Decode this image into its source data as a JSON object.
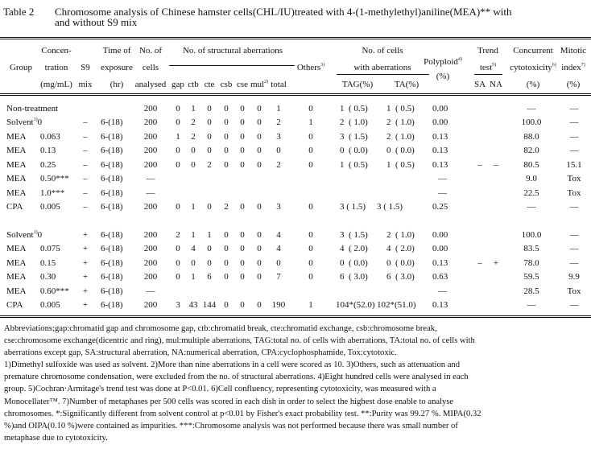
{
  "title": {
    "label": "Table 2",
    "text": "Chromosome analysis of Chinese hamster cells(CHL/IU)treated with 4-(1-methylethyl)aniline(MEA)** with",
    "text2": "and without S9 mix"
  },
  "header": {
    "group": "Group",
    "conc": [
      "Concen-",
      "tration",
      "(mg/mL)"
    ],
    "s9": [
      "S9",
      "mix"
    ],
    "time": [
      "Time of",
      "exposure",
      "(hr)"
    ],
    "cells": [
      "No. of",
      "cells",
      "analysed"
    ],
    "structural": "No. of structural aberrations",
    "sub": [
      "gap",
      "ctb",
      "cte",
      "csb",
      "cse",
      "mul",
      "total"
    ],
    "mul_sup": "2)",
    "others": "Others",
    "others_sup": "3)",
    "withab": [
      "No. of cells",
      "with aberrations"
    ],
    "tag": "TAG(%)",
    "ta": "TA(%)",
    "poly": "Polyploid",
    "poly_sup": "4)",
    "poly_unit": "(%)",
    "trend": "Trend",
    "trend2": "test",
    "trend_sup": "5)",
    "sa": "SA",
    "na": "NA",
    "cyto": [
      "Concurrent",
      "cytotoxicity",
      "(%)"
    ],
    "cyto_sup": "6)",
    "mitotic": [
      "Mitotic",
      "index",
      "(%)"
    ],
    "mitotic_sup": "7)"
  },
  "rows": [
    {
      "group": "Non-treatment",
      "conc": "",
      "s9": "",
      "time": "",
      "cells": "200",
      "ab": [
        "0",
        "1",
        "0",
        "0",
        "0",
        "0",
        "1"
      ],
      "others": "0",
      "tag": "1  ( 0.5)",
      "ta": "1  ( 0.5)",
      "poly": "0.00",
      "sa": "",
      "na": "",
      "cyto": "—",
      "mit": "—"
    },
    {
      "group": "Solvent",
      "sup": "1)",
      "conc": "0",
      "s9": "–",
      "time": "6-(18)",
      "cells": "200",
      "ab": [
        "0",
        "2",
        "0",
        "0",
        "0",
        "0",
        "2"
      ],
      "others": "1",
      "tag": "2  ( 1.0)",
      "ta": "2  ( 1.0)",
      "poly": "0.00",
      "sa": "",
      "na": "",
      "cyto": "100.0",
      "mit": "—"
    },
    {
      "group": "MEA",
      "conc": "0.063",
      "s9": "–",
      "time": "6-(18)",
      "cells": "200",
      "ab": [
        "1",
        "2",
        "0",
        "0",
        "0",
        "0",
        "3"
      ],
      "others": "0",
      "tag": "3  ( 1.5)",
      "ta": "2  ( 1.0)",
      "poly": "0.13",
      "sa": "",
      "na": "",
      "cyto": "88.0",
      "mit": "—"
    },
    {
      "group": "MEA",
      "conc": "0.13",
      "s9": "–",
      "time": "6-(18)",
      "cells": "200",
      "ab": [
        "0",
        "0",
        "0",
        "0",
        "0",
        "0",
        "0"
      ],
      "others": "0",
      "tag": "0  ( 0.0)",
      "ta": "0  ( 0.0)",
      "poly": "0.13",
      "sa": "",
      "na": "",
      "cyto": "82.0",
      "mit": "—"
    },
    {
      "group": "MEA",
      "conc": "0.25",
      "s9": "–",
      "time": "6-(18)",
      "cells": "200",
      "ab": [
        "0",
        "0",
        "2",
        "0",
        "0",
        "0",
        "2"
      ],
      "others": "0",
      "tag": "1  ( 0.5)",
      "ta": "1  ( 0.5)",
      "poly": "0.13",
      "sa": "–",
      "na": "–",
      "cyto": "80.5",
      "mit": "15.1"
    },
    {
      "group": "MEA",
      "conc": "0.50***",
      "s9": "–",
      "time": "6-(18)",
      "cells": "—",
      "ab": [
        "",
        "",
        "",
        "",
        "",
        "",
        ""
      ],
      "others": "",
      "tag": "",
      "ta": "",
      "poly": "—",
      "sa": "",
      "na": "",
      "cyto": "9.0",
      "mit": "Tox"
    },
    {
      "group": "MEA",
      "conc": "1.0***",
      "s9": "–",
      "time": "6-(18)",
      "cells": "—",
      "ab": [
        "",
        "",
        "",
        "",
        "",
        "",
        ""
      ],
      "others": "",
      "tag": "",
      "ta": "",
      "poly": "—",
      "sa": "",
      "na": "",
      "cyto": "22.5",
      "mit": "Tox"
    },
    {
      "group": "CPA",
      "conc": "0.005",
      "s9": "–",
      "time": "6-(18)",
      "cells": "200",
      "ab": [
        "0",
        "1",
        "0",
        "2",
        "0",
        "0",
        "3"
      ],
      "others": "0",
      "tag": "3 ( 1.5)",
      "ta": "3 ( 1.5)",
      "poly": "0.25",
      "sa": "",
      "na": "",
      "cyto": "—",
      "mit": "—"
    },
    {
      "group": "Solvent",
      "sup": "1)",
      "conc": "0",
      "s9": "+",
      "time": "6-(18)",
      "cells": "200",
      "ab": [
        "2",
        "1",
        "1",
        "0",
        "0",
        "0",
        "4"
      ],
      "others": "0",
      "tag": "3  ( 1.5)",
      "ta": "2  ( 1.0)",
      "poly": "0.00",
      "sa": "",
      "na": "",
      "cyto": "100.0",
      "mit": "—"
    },
    {
      "group": "MEA",
      "conc": "0.075",
      "s9": "+",
      "time": "6-(18)",
      "cells": "200",
      "ab": [
        "0",
        "4",
        "0",
        "0",
        "0",
        "0",
        "4"
      ],
      "others": "0",
      "tag": "4  ( 2.0)",
      "ta": "4  ( 2.0)",
      "poly": "0.00",
      "sa": "",
      "na": "",
      "cyto": "83.5",
      "mit": "—"
    },
    {
      "group": "MEA",
      "conc": "0.15",
      "s9": "+",
      "time": "6-(18)",
      "cells": "200",
      "ab": [
        "0",
        "0",
        "0",
        "0",
        "0",
        "0",
        "0"
      ],
      "others": "0",
      "tag": "0  ( 0.0)",
      "ta": "0  ( 0.0)",
      "poly": "0.13",
      "sa": "–",
      "na": "+",
      "cyto": "78.0",
      "mit": "—"
    },
    {
      "group": "MEA",
      "conc": "0.30",
      "s9": "+",
      "time": "6-(18)",
      "cells": "200",
      "ab": [
        "0",
        "1",
        "6",
        "0",
        "0",
        "0",
        "7"
      ],
      "others": "0",
      "tag": "6  ( 3.0)",
      "ta": "6  ( 3.0)",
      "poly": "0.63",
      "sa": "",
      "na": "",
      "cyto": "59.5",
      "mit": "9.9"
    },
    {
      "group": "MEA",
      "conc": "0.60***",
      "s9": "+",
      "time": "6-(18)",
      "cells": "—",
      "ab": [
        "",
        "",
        "",
        "",
        "",
        "",
        ""
      ],
      "others": "",
      "tag": "",
      "ta": "",
      "poly": "—",
      "sa": "",
      "na": "",
      "cyto": "28.5",
      "mit": "Tox"
    },
    {
      "group": "CPA",
      "conc": "0.005",
      "s9": "+",
      "time": "6-(18)",
      "cells": "200",
      "ab": [
        "3",
        "43",
        "144",
        "0",
        "0",
        "0",
        "190"
      ],
      "others": "1",
      "tag": "104*(52.0)",
      "ta": "102*(51.0)",
      "poly": "0.13",
      "sa": "",
      "na": "",
      "cyto": "—",
      "mit": "—"
    }
  ],
  "footnotes": "Abbreviations;gap:chromatid gap and chromosome gap,  ctb:chromatid break,  cte:chromatid exchange,  csb:chromosome break,\ncse:chromosome exchange(dicentric and ring), mul:multiple aberrations, TAG:total no. of cells with aberrations, TA:total no. of cells with\naberrations except gap, SA:structural aberration, NA:numerical aberration, CPA:cyclophosphamide, Tox:cytotoxic.\n 1)Dimethyl sulfoxide was used as solvent.  2)More than nine aberrations in a cell were scored as 10.  3)Others, such as attenuation and\npremature chromosome condensation, were excluded from the no. of structural aberrations.  4)Eight hundred cells were analysed in each\ngroup.  5)Cochran·Armitage's trend test was done at P<0.01.  6)Cell confluency, representing cytotoxicity,  was measured with a\nMonocellater™.  7)Number of metaphases per 500 cells was scored in each dish in order to select the highest dose enable to analyse\nchromosomes.  *:Significantly different from solvent control at p<0.01 by Fisher's exact probability test.  **:Purity was 99.27 %.  MIPA(0.32\n%)and OIPA(0.10 %)were contained as impurities.  ***:Chromosome analysis was not performed because there was small number of\nmetaphase due to cytotoxicity."
}
